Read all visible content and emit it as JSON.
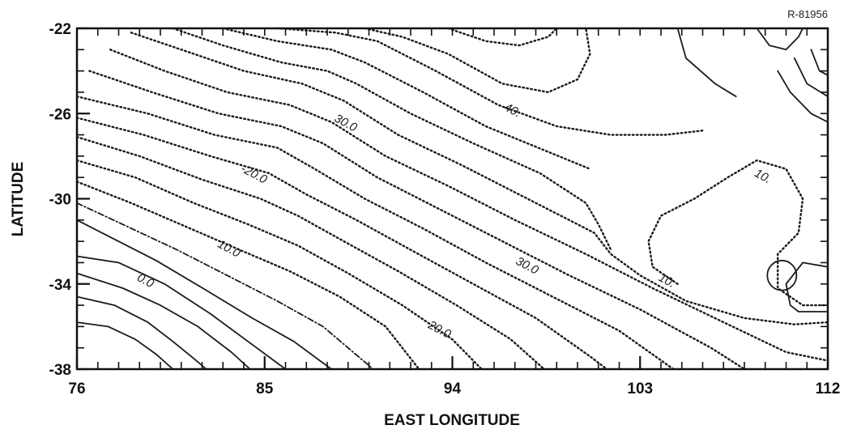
{
  "chart_data": {
    "type": "contour",
    "reference_id": "R-81956",
    "xlabel": "EAST LONGITUDE",
    "ylabel": "LATITUDE",
    "xlim": [
      76,
      112
    ],
    "ylim": [
      -38,
      -22
    ],
    "x_ticks": [
      {
        "value": 76,
        "label": "76"
      },
      {
        "value": 85,
        "label": "85"
      },
      {
        "value": 94,
        "label": "94"
      },
      {
        "value": 103,
        "label": "103"
      },
      {
        "value": 112,
        "label": "112"
      }
    ],
    "y_ticks": [
      {
        "value": -22,
        "label": "-22"
      },
      {
        "value": -26,
        "label": "-26"
      },
      {
        "value": -30,
        "label": "-30"
      },
      {
        "value": -34,
        "label": "-34"
      },
      {
        "value": -38,
        "label": "-38"
      }
    ],
    "contour_labels": [
      {
        "text": "30.0",
        "lon": 88.8,
        "lat": -26.6
      },
      {
        "text": "40.",
        "lon": 96.8,
        "lat": -26.0
      },
      {
        "text": "-20.0",
        "lon": 84.4,
        "lat": -29.0
      },
      {
        "text": "10.",
        "lon": 108.8,
        "lat": -29.1
      },
      {
        "text": "10.0",
        "lon": 83.2,
        "lat": -32.5
      },
      {
        "text": "30.0",
        "lon": 97.5,
        "lat": -33.3
      },
      {
        "text": "0.0",
        "lon": 79.2,
        "lat": -34.0
      },
      {
        "text": "10.",
        "lon": 104.2,
        "lat": -34.0
      },
      {
        "text": "20.0",
        "lon": 93.3,
        "lat": -36.3
      }
    ],
    "contours": [
      {
        "style": "solid",
        "points": [
          [
            76,
            -35.8
          ],
          [
            77.5,
            -36.0
          ],
          [
            78.8,
            -36.6
          ],
          [
            79.8,
            -37.3
          ],
          [
            80.6,
            -38
          ]
        ]
      },
      {
        "style": "solid",
        "points": [
          [
            76,
            -34.6
          ],
          [
            77.8,
            -35.0
          ],
          [
            79.4,
            -35.8
          ],
          [
            80.6,
            -36.7
          ],
          [
            81.6,
            -37.5
          ],
          [
            82.2,
            -38
          ]
        ]
      },
      {
        "style": "solid",
        "points": [
          [
            76,
            -33.5
          ],
          [
            78.2,
            -34.2
          ],
          [
            80.0,
            -35.0
          ],
          [
            81.8,
            -36.0
          ],
          [
            83.4,
            -37.2
          ],
          [
            84.3,
            -38
          ]
        ]
      },
      {
        "style": "solid",
        "points": [
          [
            76,
            -32.7
          ],
          [
            78.0,
            -33.0
          ],
          [
            80.2,
            -34.0
          ],
          [
            82.4,
            -35.4
          ],
          [
            84.2,
            -36.7
          ],
          [
            86.0,
            -38
          ]
        ]
      },
      {
        "style": "solid",
        "points": [
          [
            76,
            -31.0
          ],
          [
            77.6,
            -31.8
          ],
          [
            79.8,
            -32.9
          ],
          [
            82.2,
            -34.3
          ],
          [
            84.4,
            -35.6
          ],
          [
            86.4,
            -36.7
          ],
          [
            88.2,
            -38
          ]
        ]
      },
      {
        "style": "dashdot",
        "points": [
          [
            76,
            -30.2
          ],
          [
            78.4,
            -31.3
          ],
          [
            80.8,
            -32.4
          ],
          [
            83.2,
            -33.6
          ],
          [
            85.6,
            -34.8
          ],
          [
            87.8,
            -36.0
          ],
          [
            90.2,
            -38
          ]
        ]
      },
      {
        "style": "dotted",
        "points": [
          [
            76,
            -29.2
          ],
          [
            78.6,
            -30.2
          ],
          [
            81.2,
            -31.3
          ],
          [
            83.8,
            -32.4
          ],
          [
            86.2,
            -33.4
          ],
          [
            88.6,
            -34.6
          ],
          [
            90.8,
            -36.0
          ],
          [
            92.4,
            -38
          ]
        ]
      },
      {
        "style": "dotted",
        "points": [
          [
            76,
            -28.2
          ],
          [
            78.8,
            -29.0
          ],
          [
            81.6,
            -30.2
          ],
          [
            84.2,
            -31.2
          ],
          [
            86.6,
            -32.2
          ],
          [
            89.0,
            -33.5
          ],
          [
            91.6,
            -35.0
          ],
          [
            94.0,
            -36.6
          ],
          [
            95.4,
            -38
          ]
        ]
      },
      {
        "style": "dotted",
        "points": [
          [
            76,
            -27.1
          ],
          [
            79.0,
            -28.0
          ],
          [
            82.0,
            -29.1
          ],
          [
            84.8,
            -30.0
          ],
          [
            86.6,
            -30.8
          ],
          [
            88.8,
            -32.0
          ],
          [
            91.4,
            -33.4
          ],
          [
            94.2,
            -35.0
          ],
          [
            96.8,
            -36.6
          ],
          [
            98.4,
            -38
          ]
        ]
      },
      {
        "style": "dotted",
        "points": [
          [
            76,
            -26.2
          ],
          [
            79.2,
            -27.0
          ],
          [
            82.4,
            -28.0
          ],
          [
            85.2,
            -28.8
          ],
          [
            87.0,
            -29.8
          ],
          [
            89.4,
            -31.0
          ],
          [
            92.0,
            -32.4
          ],
          [
            95.0,
            -34.0
          ],
          [
            98.0,
            -35.6
          ],
          [
            100.6,
            -37.4
          ],
          [
            101.4,
            -38
          ]
        ]
      },
      {
        "style": "dotted",
        "points": [
          [
            76,
            -25.2
          ],
          [
            79.4,
            -26.0
          ],
          [
            82.6,
            -27.0
          ],
          [
            85.6,
            -27.6
          ],
          [
            87.4,
            -28.6
          ],
          [
            89.8,
            -30.0
          ],
          [
            92.6,
            -31.4
          ],
          [
            95.6,
            -33.0
          ],
          [
            98.8,
            -34.6
          ],
          [
            102.0,
            -36.2
          ],
          [
            104.6,
            -38
          ]
        ]
      },
      {
        "style": "dotted",
        "points": [
          [
            76.6,
            -24.0
          ],
          [
            79.6,
            -25.0
          ],
          [
            82.8,
            -26.0
          ],
          [
            85.8,
            -26.6
          ],
          [
            87.8,
            -27.4
          ],
          [
            90.4,
            -29.0
          ],
          [
            93.2,
            -30.4
          ],
          [
            96.4,
            -32.0
          ],
          [
            99.6,
            -33.6
          ],
          [
            103.0,
            -35.2
          ],
          [
            106.4,
            -37.0
          ],
          [
            108.0,
            -38
          ]
        ]
      },
      {
        "style": "dotted",
        "points": [
          [
            77.6,
            -23.0
          ],
          [
            80.2,
            -24.0
          ],
          [
            83.2,
            -25.0
          ],
          [
            86.2,
            -25.6
          ],
          [
            88.2,
            -26.4
          ],
          [
            90.8,
            -28.0
          ],
          [
            93.8,
            -29.4
          ],
          [
            97.0,
            -31.0
          ],
          [
            100.4,
            -32.6
          ],
          [
            103.6,
            -34.2
          ],
          [
            107.0,
            -35.8
          ],
          [
            110.0,
            -37.2
          ],
          [
            112,
            -37.6
          ]
        ]
      },
      {
        "style": "dotted",
        "points": [
          [
            78.6,
            -22.2
          ],
          [
            81.0,
            -23.0
          ],
          [
            84.0,
            -24.0
          ],
          [
            86.8,
            -24.6
          ],
          [
            88.8,
            -25.4
          ],
          [
            91.4,
            -27.0
          ],
          [
            94.4,
            -28.4
          ],
          [
            97.6,
            -30.0
          ],
          [
            100.8,
            -31.6
          ],
          [
            101.6,
            -32.6
          ],
          [
            103.0,
            -33.6
          ],
          [
            105.2,
            -34.8
          ],
          [
            108.0,
            -35.6
          ],
          [
            110.4,
            -35.9
          ],
          [
            112,
            -35.8
          ]
        ]
      },
      {
        "style": "dotted",
        "points": [
          [
            80.6,
            -22
          ],
          [
            83.0,
            -22.8
          ],
          [
            85.8,
            -23.6
          ],
          [
            88.0,
            -24.0
          ],
          [
            89.4,
            -24.6
          ],
          [
            92.0,
            -26.0
          ],
          [
            95.0,
            -27.4
          ],
          [
            98.2,
            -28.8
          ],
          [
            100.4,
            -30.2
          ],
          [
            101.0,
            -31.2
          ],
          [
            101.6,
            -32.4
          ]
        ]
      },
      {
        "style": "dotted",
        "points": [
          [
            83.0,
            -22
          ],
          [
            85.6,
            -22.6
          ],
          [
            88.2,
            -23.0
          ],
          [
            89.8,
            -23.6
          ],
          [
            92.6,
            -25.0
          ],
          [
            95.6,
            -26.6
          ],
          [
            98.6,
            -27.8
          ],
          [
            100.6,
            -28.6
          ]
        ]
      },
      {
        "style": "dotted",
        "points": [
          [
            85.6,
            -22
          ],
          [
            88.4,
            -22.2
          ],
          [
            90.4,
            -22.6
          ],
          [
            93.2,
            -24.0
          ],
          [
            96.2,
            -25.6
          ],
          [
            99.0,
            -26.6
          ],
          [
            101.6,
            -27.0
          ],
          [
            104.2,
            -27.0
          ],
          [
            106.0,
            -26.8
          ]
        ]
      },
      {
        "style": "dotted",
        "points": [
          [
            89.8,
            -22
          ],
          [
            91.6,
            -22.4
          ],
          [
            93.8,
            -23.2
          ],
          [
            96.4,
            -24.6
          ],
          [
            98.6,
            -25.0
          ],
          [
            100.0,
            -24.4
          ],
          [
            100.6,
            -23.2
          ],
          [
            100.4,
            -22
          ]
        ]
      },
      {
        "style": "dotted",
        "points": [
          [
            93.8,
            -22
          ],
          [
            95.6,
            -22.6
          ],
          [
            97.2,
            -22.8
          ],
          [
            98.6,
            -22.4
          ],
          [
            99.0,
            -22
          ]
        ]
      },
      {
        "style": "dotted",
        "points": [
          [
            104.8,
            -34.0
          ],
          [
            103.6,
            -33.2
          ],
          [
            103.4,
            -32.0
          ],
          [
            104.0,
            -30.8
          ],
          [
            105.6,
            -30.0
          ],
          [
            107.2,
            -29.0
          ],
          [
            108.6,
            -28.2
          ],
          [
            110.0,
            -28.6
          ],
          [
            110.8,
            -30.0
          ],
          [
            110.6,
            -31.6
          ],
          [
            109.6,
            -32.6
          ],
          [
            109.6,
            -34.2
          ],
          [
            110.8,
            -35.0
          ],
          [
            112,
            -35.0
          ]
        ]
      },
      {
        "style": "solid",
        "points": [
          [
            112,
            -33.2
          ],
          [
            110.8,
            -33.0
          ],
          [
            110.0,
            -34.0
          ],
          [
            110.2,
            -35.0
          ],
          [
            110.6,
            -35.3
          ],
          [
            112,
            -35.3
          ]
        ]
      },
      {
        "style": "solid",
        "points": [
          [
            104.8,
            -22
          ],
          [
            105.2,
            -23.4
          ],
          [
            106.6,
            -24.6
          ],
          [
            107.6,
            -25.2
          ]
        ]
      },
      {
        "style": "solid",
        "points": [
          [
            108.6,
            -22
          ],
          [
            109.2,
            -22.8
          ],
          [
            110.0,
            -23.0
          ],
          [
            110.6,
            -22.4
          ],
          [
            110.8,
            -22
          ]
        ]
      },
      {
        "style": "solid",
        "points": [
          [
            109.6,
            -24.0
          ],
          [
            110.2,
            -25.0
          ],
          [
            111.2,
            -26.0
          ],
          [
            112,
            -26.4
          ]
        ]
      },
      {
        "style": "solid",
        "points": [
          [
            110.4,
            -23.4
          ],
          [
            111.0,
            -24.6
          ],
          [
            112,
            -25.2
          ]
        ]
      },
      {
        "style": "solid",
        "points": [
          [
            111.2,
            -23.0
          ],
          [
            111.6,
            -24.0
          ],
          [
            112,
            -24.2
          ]
        ]
      }
    ],
    "closed_contours": [
      {
        "style": "solid",
        "center": [
          109.8,
          -33.6
        ],
        "rx_deg": 0.7,
        "ry_deg": 0.7
      }
    ]
  }
}
